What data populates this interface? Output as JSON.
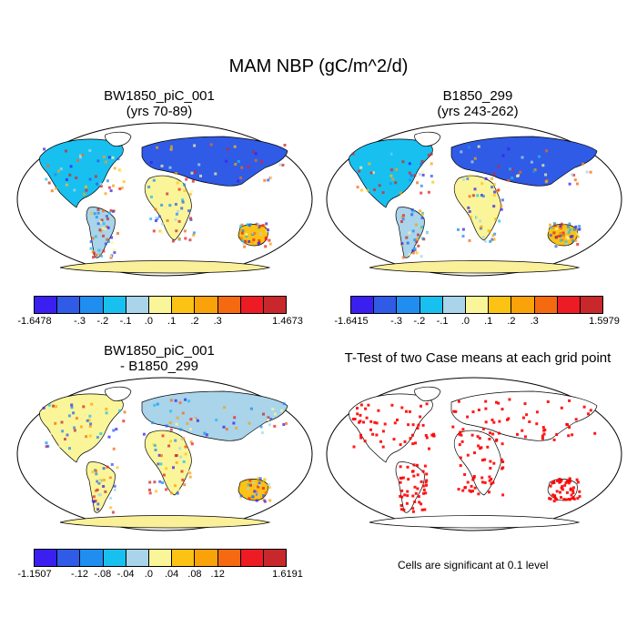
{
  "title": "MAM NBP (gC/m^2/d)",
  "panels": [
    {
      "title_line1": "BW1850_piC_001",
      "title_line2": "(yrs 70-89)"
    },
    {
      "title_line1": "B1850_299",
      "title_line2": "(yrs 243-262)"
    },
    {
      "title_line1": "BW1850_piC_001",
      "title_line2": "- B1850_299"
    },
    {
      "title_line1": "T-Test of two Case means at each grid point",
      "title_line2": ""
    }
  ],
  "colorbars": [
    {
      "min": "-1.6478",
      "max": "1.4673",
      "ticks": [
        "-.3",
        "-.2",
        "-.1",
        ".0",
        ".1",
        ".2",
        ".3"
      ]
    },
    {
      "min": "-1.6415",
      "max": "1.5979",
      "ticks": [
        "-.3",
        "-.2",
        "-.1",
        ".0",
        ".1",
        ".2",
        ".3"
      ]
    },
    {
      "min": "-1.1507",
      "max": "1.6191",
      "ticks": [
        "-.12",
        "-.08",
        "-.04",
        ".0",
        ".04",
        ".08",
        ".12"
      ]
    }
  ],
  "palette": [
    "#3a1ff0",
    "#2f5be6",
    "#1f8ef0",
    "#18c0f0",
    "#a9d4ea",
    "#fbf59a",
    "#fcc214",
    "#f9a20a",
    "#f56a10",
    "#ed1c24",
    "#c8282c"
  ],
  "significance_color": "#ff0000",
  "land_color_antarctica": "#fbf09a",
  "ttest_note": "Cells are significant at 0.1 level"
}
